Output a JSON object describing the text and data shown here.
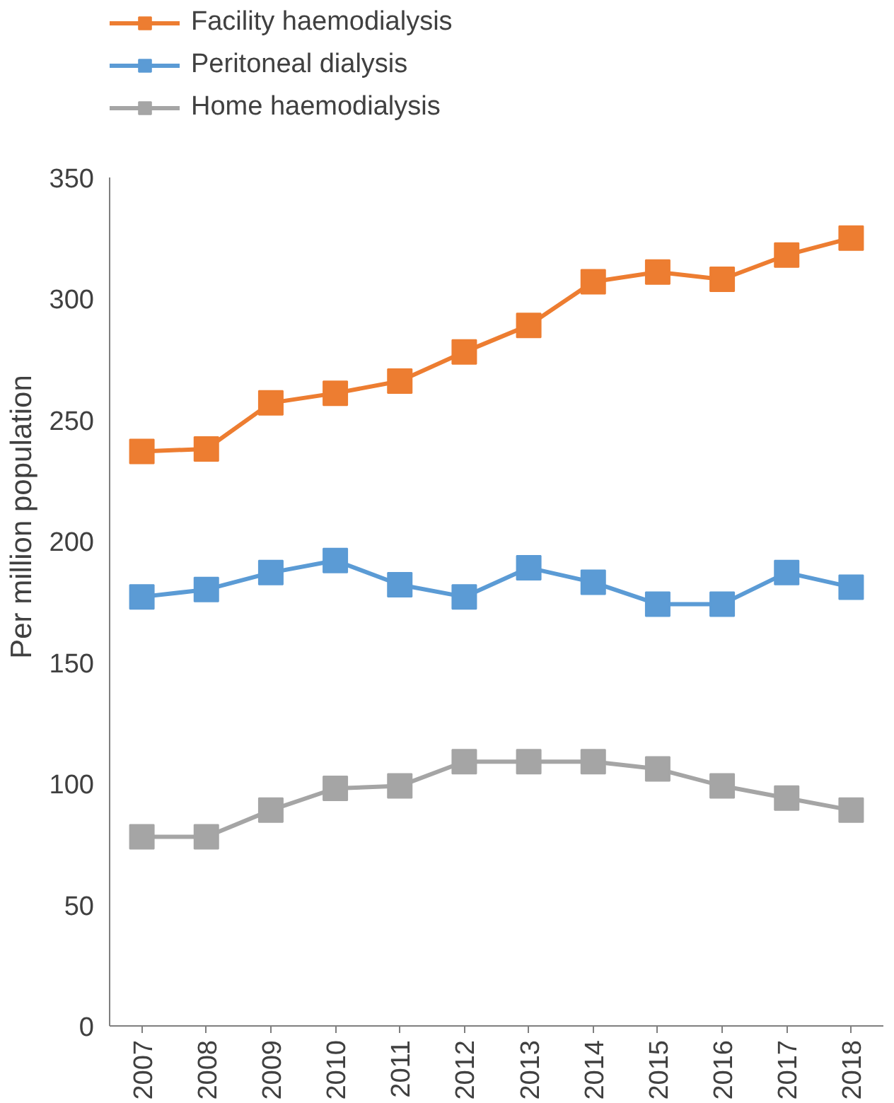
{
  "chart_data": {
    "type": "line",
    "ylabel": "Per million population",
    "categories": [
      "2007",
      "2008",
      "2009",
      "2010",
      "2011",
      "2012",
      "2013",
      "2014",
      "2015",
      "2016",
      "2017",
      "2018"
    ],
    "series": [
      {
        "name": "Facility haemodialysis",
        "color": "#ed7d31",
        "values": [
          237,
          238,
          257,
          261,
          266,
          278,
          289,
          307,
          311,
          308,
          318,
          325
        ]
      },
      {
        "name": "Peritoneal dialysis",
        "color": "#5b9bd5",
        "values": [
          177,
          180,
          187,
          192,
          182,
          177,
          189,
          183,
          174,
          174,
          187,
          181
        ]
      },
      {
        "name": "Home haemodialysis",
        "color": "#a5a5a5",
        "values": [
          78,
          78,
          89,
          98,
          99,
          109,
          109,
          109,
          106,
          99,
          94,
          89
        ]
      }
    ],
    "ylim": [
      0,
      350
    ],
    "yticks": [
      0,
      50,
      100,
      150,
      200,
      250,
      300,
      350
    ],
    "grid": false,
    "legend": "top",
    "marker": "square",
    "line_style": "solid"
  }
}
